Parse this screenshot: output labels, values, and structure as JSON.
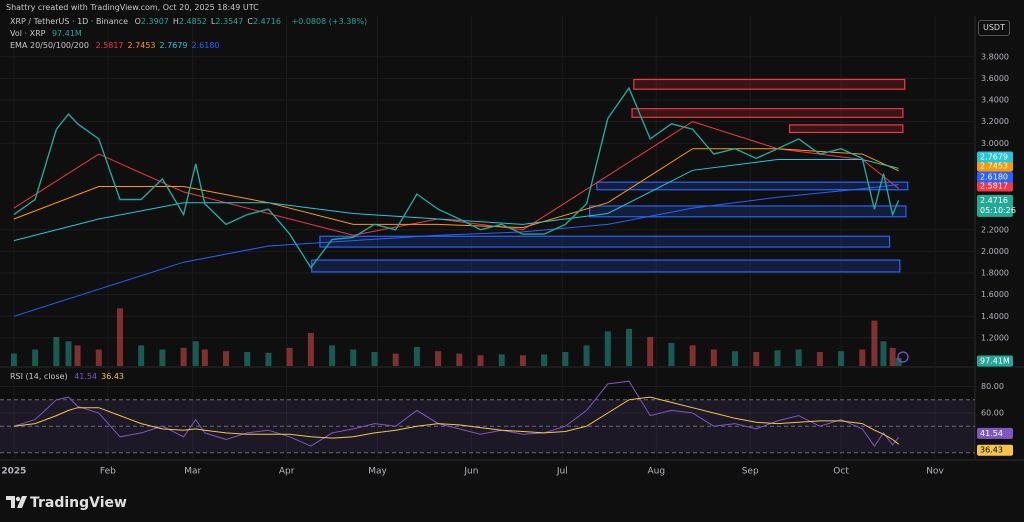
{
  "header": {
    "credit": "Shattry created with TradingView.com, Oct 20, 2025 18:49 UTC",
    "currency": "USDT",
    "ohlc": [
      {
        "key": "O",
        "value": 2.3907
      },
      {
        "key": "H",
        "value": 2.4852
      },
      {
        "key": "L",
        "value": 2.3547
      },
      {
        "key": "C",
        "value": 2.4716
      }
    ],
    "change": "+0.0808 (+3.38%)",
    "countdown": "05:10:26",
    "brand": "TradingView"
  },
  "chart_data": [
    {
      "type": "line",
      "title": "XRP / TetherUS · 1D · Binance",
      "xlim": [
        -4.6,
        317.2
      ],
      "ylim": [
        0.94,
        4.14
      ],
      "yticks": [
        {
          "value": 3.8,
          "label": "3.8000"
        },
        {
          "value": 3.6,
          "label": "3.6000"
        },
        {
          "value": 3.4,
          "label": "3.4000"
        },
        {
          "value": 3.2,
          "label": "3.2000"
        },
        {
          "value": 3,
          "label": "3.0000"
        },
        {
          "value": 2.2,
          "label": "2.2000"
        },
        {
          "value": 2,
          "label": "2.0000"
        },
        {
          "value": 1.8,
          "label": "1.8000"
        },
        {
          "value": 1.6,
          "label": "1.6000"
        },
        {
          "value": 1.4,
          "label": "1.4000"
        },
        {
          "value": 1.2,
          "label": "1.2000"
        }
      ],
      "grid": true,
      "x": [
        0,
        7,
        14,
        18,
        21,
        28,
        35,
        42,
        49,
        56,
        60,
        63,
        70,
        77,
        84,
        91,
        98,
        105,
        112,
        119,
        126,
        133,
        140,
        147,
        154,
        161,
        168,
        175,
        182,
        189,
        196,
        203,
        210,
        217,
        224,
        231,
        238,
        245,
        252,
        259,
        266,
        273,
        280,
        284,
        287,
        290,
        292
      ],
      "series": [
        {
          "color": "#26a69a",
          "values": [
            2.34,
            2.48,
            3.13,
            3.27,
            3.18,
            3.04,
            2.48,
            2.48,
            2.67,
            2.34,
            2.81,
            2.44,
            2.25,
            2.34,
            2.39,
            2.16,
            1.85,
            2.11,
            2.13,
            2.25,
            2.2,
            2.53,
            2.39,
            2.3,
            2.2,
            2.25,
            2.16,
            2.16,
            2.25,
            2.44,
            3.23,
            3.51,
            3.04,
            3.18,
            3.13,
            2.9,
            2.95,
            2.86,
            2.95,
            3.04,
            2.9,
            2.95,
            2.86,
            2.39,
            2.72,
            2.34,
            2.4716
          ]
        }
      ],
      "ema": {
        "label": "EMA 20/50/100/200",
        "x": [
          0,
          28,
          56,
          84,
          112,
          140,
          168,
          196,
          224,
          252,
          280,
          292
        ],
        "series": [
          {
            "color": "#f23645",
            "values": [
              2.4,
              2.9,
              2.55,
              2.35,
              2.15,
              2.3,
              2.2,
              2.7,
              3.2,
              2.95,
              2.85,
              2.5817
            ]
          },
          {
            "color": "#ff9800",
            "values": [
              2.3,
              2.6,
              2.6,
              2.45,
              2.25,
              2.25,
              2.22,
              2.45,
              2.95,
              2.95,
              2.9,
              2.7453
            ]
          },
          {
            "color": "#26c6da",
            "values": [
              2.1,
              2.3,
              2.45,
              2.45,
              2.35,
              2.3,
              2.25,
              2.35,
              2.75,
              2.85,
              2.85,
              2.7679
            ]
          },
          {
            "color": "#2962ff",
            "values": [
              1.4,
              1.65,
              1.9,
              2.05,
              2.1,
              2.15,
              2.18,
              2.25,
              2.4,
              2.5,
              2.58,
              2.618
            ],
            "value_labels": [
              null,
              null,
              null,
              null,
              null,
              null,
              null,
              null,
              null,
              null,
              null,
              "2.6180"
            ]
          }
        ]
      },
      "zones": [
        {
          "color": "#f23645",
          "x0": 204.6,
          "x1": 294,
          "y0": 3.5,
          "y1": 3.59
        },
        {
          "color": "#f23645",
          "x0": 204,
          "x1": 293.4,
          "y0": 3.24,
          "y1": 3.32
        },
        {
          "color": "#f23645",
          "x0": 256,
          "x1": 293.4,
          "y0": 3.1,
          "y1": 3.17
        },
        {
          "color": "#2962ff",
          "x0": 192.4,
          "x1": 295,
          "y0": 2.57,
          "y1": 2.64
        },
        {
          "color": "#2962ff",
          "x0": 190,
          "x1": 294.4,
          "y0": 2.32,
          "y1": 2.42
        },
        {
          "color": "#2962ff",
          "x0": 101,
          "x1": 289,
          "y0": 2.04,
          "y1": 2.14
        },
        {
          "color": "#2962ff",
          "x0": 98.3,
          "x1": 292.4,
          "y0": 1.81,
          "y1": 1.92
        }
      ]
    },
    {
      "type": "bar",
      "title": "Vol · XRP",
      "xlim": [
        -4.6,
        317.2
      ],
      "ylim": [
        0,
        800
      ],
      "colors": {
        "up": "#26a69a",
        "down": "#ef5350"
      },
      "x": [
        0,
        7,
        14,
        18,
        21,
        28,
        35,
        42,
        49,
        56,
        60,
        63,
        70,
        77,
        84,
        91,
        98,
        105,
        112,
        119,
        126,
        133,
        140,
        147,
        154,
        161,
        168,
        175,
        182,
        189,
        196,
        203,
        210,
        217,
        224,
        231,
        238,
        245,
        252,
        259,
        266,
        273,
        280,
        284,
        287,
        290,
        292
      ],
      "values": [
        150,
        200,
        350,
        300,
        250,
        200,
        700,
        250,
        200,
        220,
        300,
        200,
        180,
        170,
        160,
        220,
        400,
        250,
        200,
        170,
        150,
        230,
        180,
        150,
        130,
        140,
        130,
        140,
        170,
        250,
        420,
        450,
        350,
        280,
        250,
        200,
        180,
        170,
        190,
        200,
        170,
        180,
        200,
        550,
        300,
        220,
        97.41
      ],
      "value_labels": [
        null,
        null,
        null,
        null,
        null,
        null,
        null,
        null,
        null,
        null,
        null,
        null,
        null,
        null,
        null,
        null,
        null,
        null,
        null,
        null,
        null,
        null,
        null,
        null,
        null,
        null,
        null,
        null,
        null,
        null,
        null,
        null,
        null,
        null,
        null,
        null,
        null,
        null,
        null,
        null,
        null,
        null,
        null,
        null,
        null,
        null,
        "97.41M"
      ]
    },
    {
      "type": "line",
      "title": "RSI (14, close)",
      "xlim": [
        -4.6,
        317.2
      ],
      "ylim": [
        26,
        94
      ],
      "yticks": [
        {
          "value": 80,
          "label": "80.00"
        },
        {
          "value": 60,
          "label": "60.00"
        }
      ],
      "levels": [
        70,
        50,
        30
      ],
      "xticks": [
        {
          "value": 0,
          "label": "2025"
        },
        {
          "value": 31,
          "label": "Feb"
        },
        {
          "value": 59,
          "label": "Mar"
        },
        {
          "value": 90,
          "label": "Apr"
        },
        {
          "value": 120,
          "label": "May"
        },
        {
          "value": 151,
          "label": "Jun"
        },
        {
          "value": 181,
          "label": "Jul"
        },
        {
          "value": 212,
          "label": "Aug"
        },
        {
          "value": 243,
          "label": "Sep"
        },
        {
          "value": 273,
          "label": "Oct"
        },
        {
          "value": 304,
          "label": "Nov"
        }
      ],
      "x": [
        0,
        7,
        14,
        18,
        21,
        28,
        35,
        42,
        49,
        56,
        60,
        63,
        70,
        77,
        84,
        91,
        98,
        105,
        112,
        119,
        126,
        133,
        140,
        147,
        154,
        161,
        168,
        175,
        182,
        189,
        196,
        203,
        210,
        217,
        224,
        231,
        238,
        245,
        252,
        259,
        266,
        273,
        280,
        284,
        287,
        290,
        292
      ],
      "series": [
        {
          "color": "#7e57c2",
          "values": [
            50,
            55,
            70,
            72,
            65,
            60,
            42,
            45,
            50,
            42,
            55,
            45,
            40,
            45,
            47,
            42,
            35,
            45,
            48,
            52,
            50,
            62,
            52,
            48,
            44,
            47,
            44,
            45,
            50,
            62,
            82,
            84,
            58,
            62,
            60,
            50,
            52,
            48,
            54,
            58,
            50,
            55,
            48,
            35,
            45,
            36,
            41.54
          ]
        },
        {
          "color": "#f7c548",
          "values": [
            50,
            52,
            58,
            62,
            64,
            64,
            58,
            52,
            48,
            47,
            48,
            47,
            45,
            44,
            44,
            44,
            42,
            41,
            42,
            45,
            47,
            50,
            52,
            51,
            49,
            47,
            46,
            45,
            46,
            50,
            60,
            70,
            72,
            68,
            64,
            60,
            56,
            53,
            52,
            53,
            54,
            54,
            52,
            47,
            44,
            40,
            36.43
          ]
        }
      ]
    }
  ]
}
